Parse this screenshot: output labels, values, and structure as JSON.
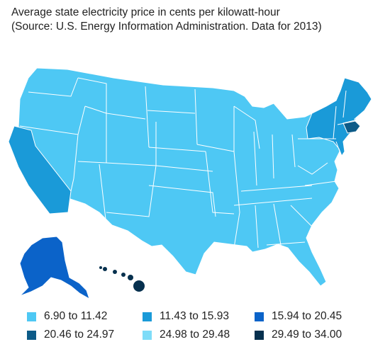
{
  "title": {
    "line1": "Average state electricity price in cents per kilowatt-hour",
    "line2": "(Source: U.S. Energy Information Administration. Data for 2013)"
  },
  "legend": [
    {
      "label": "6.90 to 11.42",
      "color": "#4ec8f4"
    },
    {
      "label": "11.43 to 15.93",
      "color": "#1a9ad8"
    },
    {
      "label": "15.94 to 20.45",
      "color": "#0b63c9"
    },
    {
      "label": "20.46 to 24.97",
      "color": "#0d5b88"
    },
    {
      "label": "24.98 to 29.48",
      "color": "#7edcf8"
    },
    {
      "label": "29.49 to 34.00",
      "color": "#06304e"
    }
  ],
  "map_colors": {
    "border": "#ffffff",
    "bin1": "#4ec8f4",
    "bin2": "#1a9ad8",
    "bin3": "#0b63c9",
    "bin4": "#0d5b88",
    "bin6": "#06304e"
  }
}
